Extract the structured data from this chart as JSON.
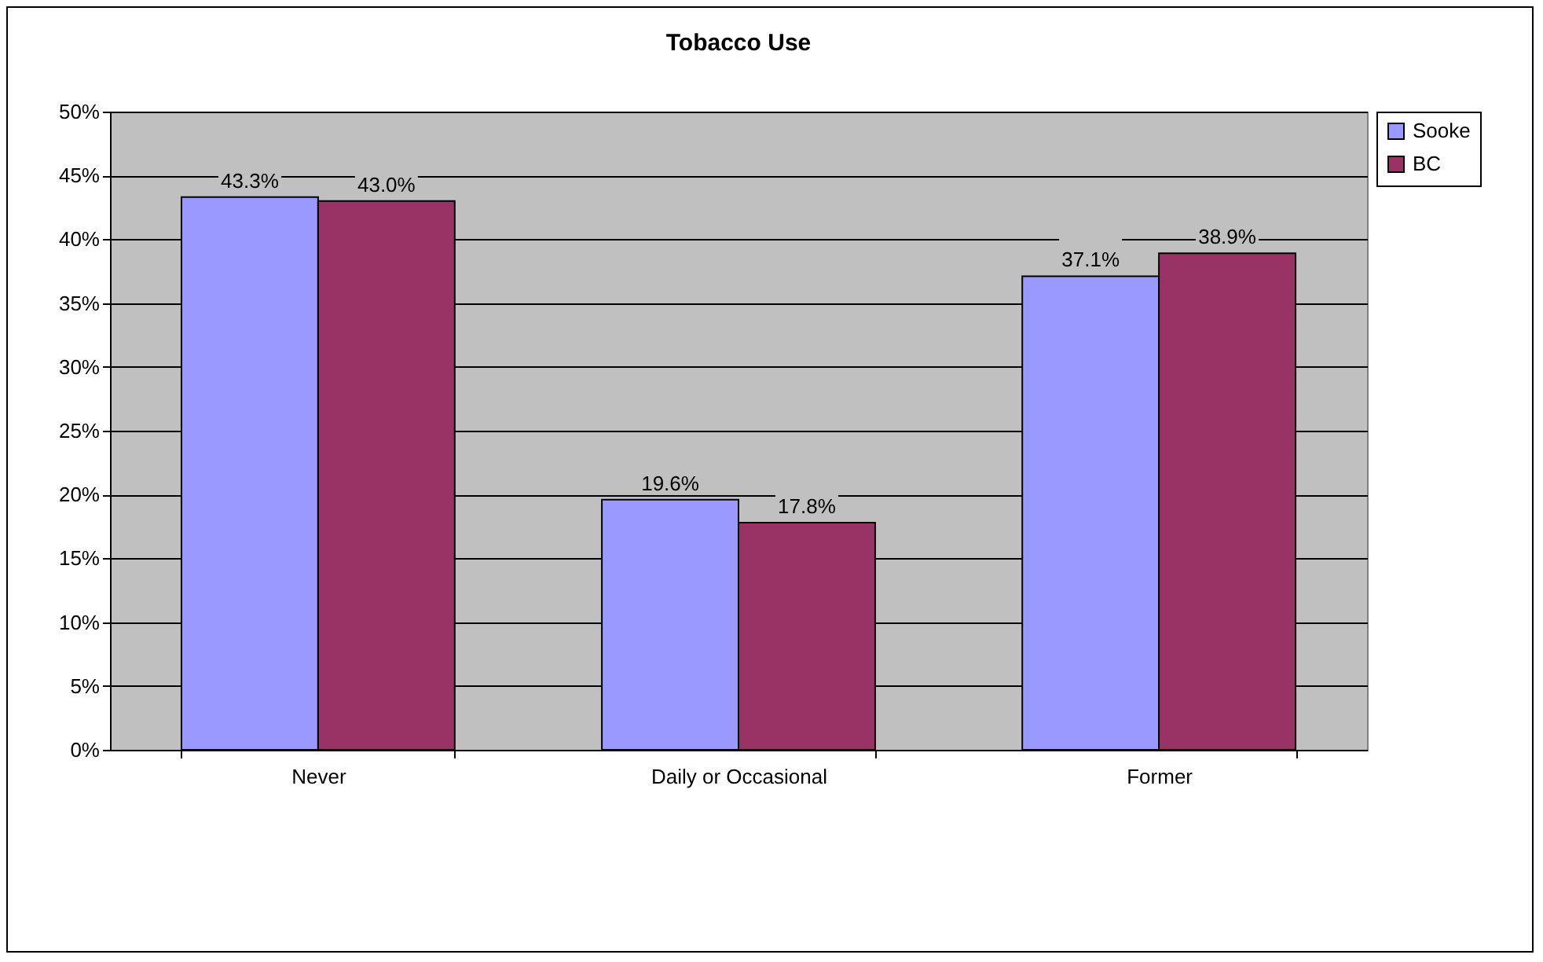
{
  "chart_data": {
    "type": "bar",
    "title": "Tobacco Use",
    "categories": [
      "Never",
      "Daily or Occasional",
      "Former"
    ],
    "series": [
      {
        "name": "Sooke",
        "color": "#9999ff",
        "values": [
          43.3,
          19.6,
          37.1
        ],
        "value_labels": [
          "43.3%",
          "19.6%",
          "37.1%"
        ]
      },
      {
        "name": "BC",
        "color": "#993366",
        "values": [
          43.0,
          17.8,
          38.9
        ],
        "value_labels": [
          "43.0%",
          "17.8%",
          "38.9%"
        ]
      }
    ],
    "ylim": [
      0,
      50
    ],
    "yticks": [
      {
        "value": 0,
        "label": "0%"
      },
      {
        "value": 5,
        "label": "5%"
      },
      {
        "value": 10,
        "label": "10%"
      },
      {
        "value": 15,
        "label": "15%"
      },
      {
        "value": 20,
        "label": "20%"
      },
      {
        "value": 25,
        "label": "25%"
      },
      {
        "value": 30,
        "label": "30%"
      },
      {
        "value": 35,
        "label": "35%"
      },
      {
        "value": 40,
        "label": "40%"
      },
      {
        "value": 45,
        "label": "45%"
      },
      {
        "value": 50,
        "label": "50%"
      }
    ],
    "grid": "y",
    "legend": "right"
  }
}
